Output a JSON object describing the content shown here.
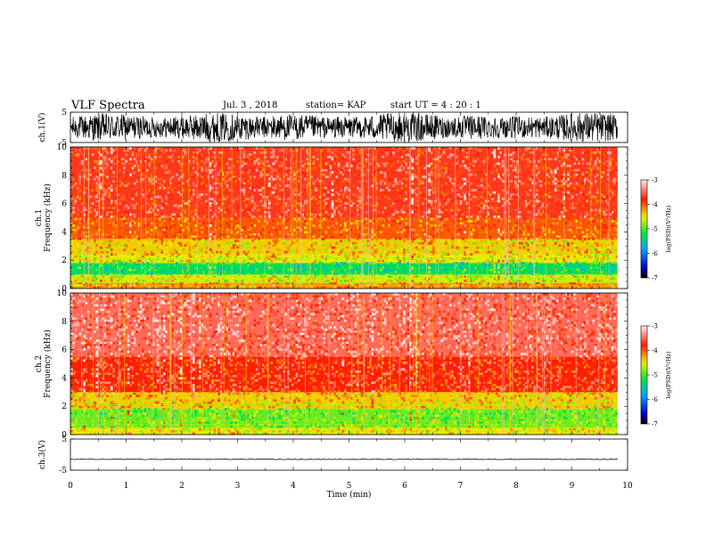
{
  "header": {
    "title": "VLF Spectra",
    "date": "Jul. 3 , 2018",
    "station": "station= KAP",
    "start": "start  UT  =   4 : 20 : 1"
  },
  "chart_data": [
    {
      "type": "line",
      "panel": "waveform ch.1",
      "ylabel": "ch.1(V)",
      "ylim": [
        -5,
        5
      ],
      "yticks": [
        5,
        -5
      ],
      "x": [
        0,
        10
      ],
      "note_value_range": [
        -5,
        5
      ]
    },
    {
      "type": "heatmap",
      "panel": "spectrogram ch.1",
      "ylabel": "ch.1",
      "ylabel2": "Frequency  (kHz)",
      "ylim": [
        0,
        10
      ],
      "yticks": [
        0,
        2,
        4,
        6,
        8,
        10
      ],
      "xlim": [
        0,
        10
      ],
      "colorbar": {
        "label": "log(PSD)(V²/Hz)",
        "range": [
          -7,
          -3
        ],
        "ticks": [
          -3,
          -4,
          -5,
          -6,
          -7
        ]
      },
      "bands": [
        {
          "from_khz": 0.0,
          "to_khz": 0.4,
          "level": -4.2
        },
        {
          "from_khz": 0.4,
          "to_khz": 1.0,
          "level": -4.6
        },
        {
          "from_khz": 1.0,
          "to_khz": 1.8,
          "level": -5.3
        },
        {
          "from_khz": 1.8,
          "to_khz": 2.4,
          "level": -4.5
        },
        {
          "from_khz": 2.4,
          "to_khz": 3.5,
          "level": -4.4
        },
        {
          "from_khz": 3.5,
          "to_khz": 5.0,
          "level": -4.0
        },
        {
          "from_khz": 5.0,
          "to_khz": 10.0,
          "level": -3.7
        }
      ]
    },
    {
      "type": "heatmap",
      "panel": "spectrogram ch.2",
      "ylabel": "ch.2",
      "ylabel2": "Frequency  (kHz)",
      "ylim": [
        0,
        10
      ],
      "yticks": [
        0,
        2,
        4,
        6,
        8,
        10
      ],
      "xlim": [
        0,
        10
      ],
      "colorbar": {
        "label": "log(PSD)(V²/Hz)",
        "range": [
          -7,
          -3
        ],
        "ticks": [
          -3,
          -4,
          -5,
          -6,
          -7
        ]
      },
      "bands": [
        {
          "from_khz": 0.0,
          "to_khz": 0.5,
          "level": -4.5
        },
        {
          "from_khz": 0.5,
          "to_khz": 1.8,
          "level": -4.9
        },
        {
          "from_khz": 1.8,
          "to_khz": 3.0,
          "level": -4.4
        },
        {
          "from_khz": 3.0,
          "to_khz": 5.5,
          "level": -3.8
        },
        {
          "from_khz": 5.5,
          "to_khz": 10.0,
          "level": -3.5
        }
      ]
    },
    {
      "type": "line",
      "panel": "waveform ch.3",
      "ylabel": "ch.3(V)",
      "ylim": [
        -5,
        5
      ],
      "yticks": [
        5,
        -5
      ],
      "x": [
        0,
        10
      ],
      "note_constant_value": -1.5
    }
  ],
  "xaxis": {
    "label": "Time  (min)",
    "range": [
      0,
      10
    ],
    "ticks": [
      "0",
      "1",
      "2",
      "3",
      "4",
      "5",
      "6",
      "7",
      "8",
      "9",
      "10"
    ],
    "data_end": 9.82
  }
}
